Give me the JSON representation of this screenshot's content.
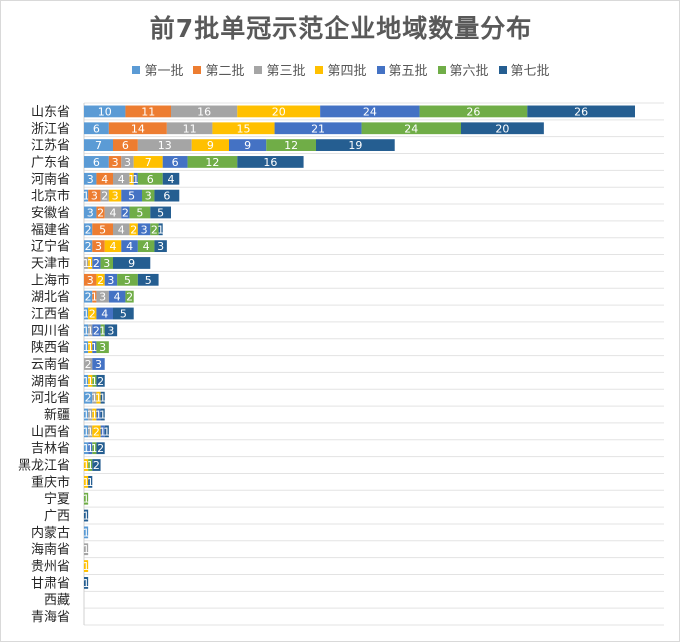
{
  "chart_data": {
    "type": "bar",
    "orientation": "horizontal",
    "stacked": true,
    "title": "前7批单冠示范企业地域数量分布",
    "legend_position": "top",
    "grid": true,
    "xlim": [
      0,
      140
    ],
    "categories": [
      "山东省",
      "浙江省",
      "江苏省",
      "广东省",
      "河南省",
      "北京市",
      "安徽省",
      "福建省",
      "辽宁省",
      "天津市",
      "上海市",
      "湖北省",
      "江西省",
      "四川省",
      "陕西省",
      "云南省",
      "湖南省",
      "河北省",
      "新疆",
      "山西省",
      "吉林省",
      "黑龙江省",
      "重庆市",
      "宁夏",
      "广西",
      "内蒙古",
      "海南省",
      "贵州省",
      "甘肃省",
      "西藏",
      "青海省"
    ],
    "series": [
      {
        "name": "第一批",
        "color": "#5B9BD5",
        "values": [
          10,
          6,
          7,
          6,
          3,
          1,
          3,
          2,
          2,
          0,
          0,
          2,
          1,
          1,
          1,
          0,
          1,
          2,
          1,
          1,
          1,
          0,
          0,
          0,
          0,
          1,
          0,
          0,
          0,
          0,
          0
        ]
      },
      {
        "name": "第二批",
        "color": "#ED7D31",
        "values": [
          11,
          14,
          6,
          3,
          4,
          3,
          2,
          5,
          3,
          0,
          3,
          1,
          0,
          0,
          0,
          0,
          0,
          0,
          0,
          0,
          0,
          0,
          0,
          0,
          0,
          0,
          0,
          0,
          0,
          0,
          0
        ]
      },
      {
        "name": "第三批",
        "color": "#A5A5A5",
        "values": [
          16,
          11,
          13,
          3,
          4,
          2,
          4,
          4,
          0,
          1,
          0,
          3,
          0,
          1,
          0,
          2,
          0,
          1,
          1,
          1,
          0,
          0,
          0,
          0,
          0,
          0,
          1,
          0,
          0,
          0,
          0
        ]
      },
      {
        "name": "第四批",
        "color": "#FFC000",
        "values": [
          20,
          15,
          9,
          7,
          1,
          3,
          0,
          2,
          4,
          1,
          2,
          0,
          2,
          0,
          1,
          0,
          1,
          1,
          1,
          2,
          0,
          1,
          1,
          0,
          0,
          0,
          0,
          1,
          0,
          0,
          0
        ]
      },
      {
        "name": "第五批",
        "color": "#4472C4",
        "values": [
          24,
          21,
          9,
          6,
          1,
          5,
          2,
          3,
          4,
          2,
          3,
          4,
          4,
          2,
          1,
          3,
          0,
          0,
          1,
          1,
          1,
          0,
          0,
          0,
          0,
          0,
          0,
          0,
          0,
          0,
          0
        ]
      },
      {
        "name": "第六批",
        "color": "#70AD47",
        "values": [
          26,
          24,
          12,
          12,
          6,
          3,
          5,
          2,
          4,
          3,
          5,
          2,
          0,
          1,
          3,
          0,
          1,
          0,
          0,
          0,
          1,
          1,
          0,
          1,
          0,
          0,
          0,
          0,
          0,
          0,
          0
        ]
      },
      {
        "name": "第七批",
        "color": "#255E91",
        "values": [
          26,
          20,
          19,
          16,
          4,
          6,
          5,
          1,
          3,
          9,
          5,
          0,
          5,
          3,
          0,
          0,
          2,
          1,
          1,
          1,
          2,
          2,
          1,
          0,
          1,
          0,
          0,
          0,
          1,
          0,
          0
        ]
      }
    ]
  }
}
